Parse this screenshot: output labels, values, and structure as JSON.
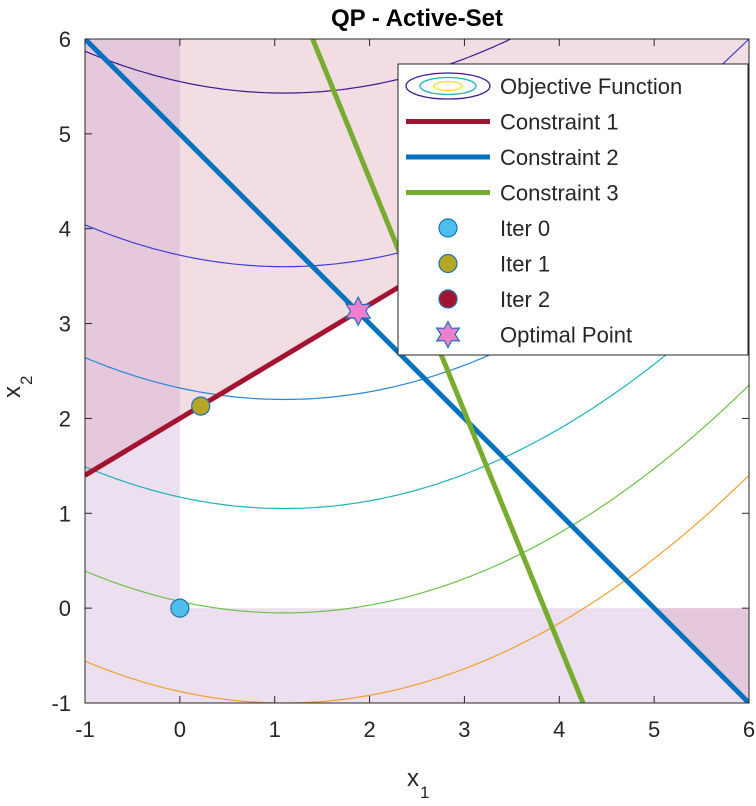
{
  "chart_data": {
    "type": "line",
    "title": "QP - Active-Set",
    "xlabel": "x",
    "xlabel_sub": "1",
    "ylabel": "x",
    "ylabel_sub": "2",
    "xlim": [
      -1,
      6
    ],
    "ylim": [
      -1,
      6
    ],
    "xticks": [
      -1,
      0,
      1,
      2,
      3,
      4,
      5,
      6
    ],
    "yticks": [
      -1,
      0,
      1,
      2,
      3,
      4,
      5,
      6
    ],
    "grid": false,
    "legend_position": "top-right",
    "legend": [
      {
        "label": "Objective Function",
        "kind": "contour"
      },
      {
        "label": "Constraint 1",
        "kind": "line",
        "color": "#a2142f"
      },
      {
        "label": "Constraint 2",
        "kind": "line",
        "color": "#0072bd"
      },
      {
        "label": "Constraint 3",
        "kind": "line",
        "color": "#77ac30"
      },
      {
        "label": "Iter 0",
        "kind": "marker",
        "color": "#4dbeee",
        "shape": "circle"
      },
      {
        "label": "Iter 1",
        "kind": "marker",
        "color": "#b5a625",
        "shape": "circle"
      },
      {
        "label": "Iter 2",
        "kind": "marker",
        "color": "#a2142f",
        "shape": "circle"
      },
      {
        "label": "Optimal Point",
        "kind": "marker",
        "color": "#f07fd0",
        "shape": "hexagram"
      }
    ],
    "constraints": [
      {
        "name": "Constraint 1",
        "color": "#a2142f",
        "points": [
          [
            -1,
            1.4
          ],
          [
            6,
            5.6
          ]
        ]
      },
      {
        "name": "Constraint 2",
        "color": "#0072bd",
        "points": [
          [
            -1,
            6
          ],
          [
            6,
            -1
          ]
        ]
      },
      {
        "name": "Constraint 3",
        "color": "#77ac30",
        "points": [
          [
            1.4,
            6
          ],
          [
            4.25,
            -1
          ]
        ]
      }
    ],
    "iterations": [
      {
        "name": "Iter 0",
        "x": 0,
        "y": 0,
        "color": "#4dbeee"
      },
      {
        "name": "Iter 1",
        "x": 0.22,
        "y": 2.13,
        "color": "#b5a625"
      },
      {
        "name": "Iter 2",
        "x": 1.88,
        "y": 3.13,
        "color": "#a2142f"
      }
    ],
    "optimal_point": {
      "name": "Optimal Point",
      "x": 1.88,
      "y": 3.13,
      "color": "#f07fd0"
    },
    "contours": {
      "center_x": 1.1,
      "curvature": 0.1,
      "levels": [
        {
          "y_at_center": 5.43,
          "color": "#3d1a8f"
        },
        {
          "y_at_center": 3.6,
          "color": "#3f3fd6"
        },
        {
          "y_at_center": 2.2,
          "color": "#2a86d8"
        },
        {
          "y_at_center": 1.05,
          "color": "#1db3b3"
        },
        {
          "y_at_center": -0.05,
          "color": "#6cc24a"
        },
        {
          "y_at_center": -1.0,
          "color": "#f0a030"
        }
      ]
    },
    "shading": {
      "infeasible_color": "#f2dde2",
      "overlap_color": "#e5c8dc",
      "bound_color": "#ecdff0"
    }
  }
}
